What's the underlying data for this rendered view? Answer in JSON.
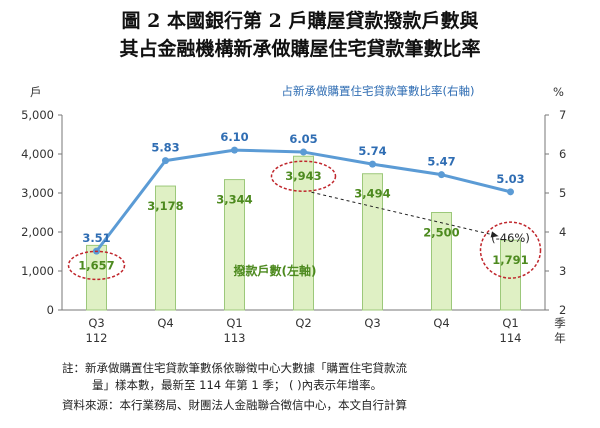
{
  "title": {
    "line1": "圖 2 本國銀行第 2 戶購屋貸款撥款戶數與",
    "line2": "其占金融機構新承做購屋住宅貸款筆數比率"
  },
  "chart_data": {
    "type": "bar+line",
    "categories": [
      "Q3|112",
      "Q4|",
      "Q1|113",
      "Q2|",
      "Q3|",
      "Q4|",
      "Q1|114"
    ],
    "x_tick_top": [
      "Q3",
      "Q4",
      "Q1",
      "Q2",
      "Q3",
      "Q4",
      "Q1"
    ],
    "x_tick_bottom": [
      "112",
      "",
      "113",
      "",
      "",
      "",
      "114"
    ],
    "x_axis_unit": "季\n年",
    "left_axis": {
      "unit": "戶",
      "range": [
        0,
        5000
      ],
      "ticks": [
        "0",
        "1,000",
        "2,000",
        "3,000",
        "4,000",
        "5,000"
      ]
    },
    "right_axis": {
      "unit": "%",
      "range": [
        2,
        7
      ],
      "ticks": [
        "2",
        "3",
        "4",
        "5",
        "6",
        "7"
      ]
    },
    "series": [
      {
        "name": "撥款戶數(左軸)",
        "type": "bar",
        "axis": "left",
        "values": [
          1657,
          3178,
          3344,
          3943,
          3494,
          2500,
          1791
        ],
        "labels": [
          "1,657",
          "3,178",
          "3,344",
          "3,943",
          "3,494",
          "2,500",
          "1,791"
        ],
        "color": "#dff0c4",
        "border": "#9cc87a",
        "label_color": "#4d8a1f"
      },
      {
        "name": "占新承做購置住宅貸款筆數比率(右軸)",
        "type": "line",
        "axis": "right",
        "values": [
          3.51,
          5.83,
          6.1,
          6.05,
          5.74,
          5.47,
          5.03
        ],
        "labels": [
          "3.51",
          "5.83",
          "6.10",
          "6.05",
          "5.74",
          "5.47",
          "5.03"
        ],
        "color": "#5b9bd5",
        "label_color": "#2f6db3"
      }
    ],
    "annotations": {
      "yoy_change": "(-46%)",
      "circle_color": "#c0272d"
    },
    "grid": false
  },
  "notes": {
    "line1": "註：新承做購置住宅貸款筆數係依聯徵中心大數據「購置住宅貸款流",
    "line2": "量」樣本數，最新至 114 年第 1 季； ( )內表示年增率。",
    "line3": "資料來源：本行業務局、財團法人金融聯合徵信中心，本文自行計算"
  }
}
